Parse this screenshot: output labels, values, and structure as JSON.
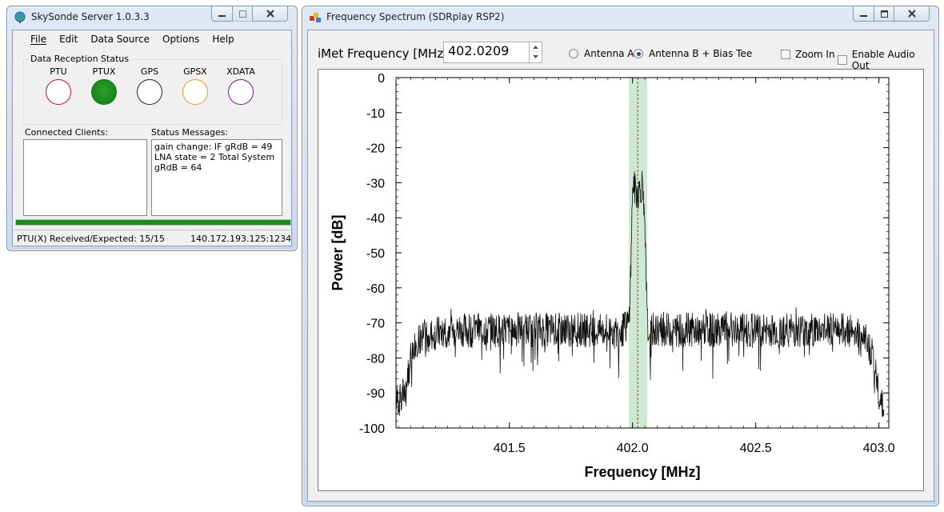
{
  "skysonde": {
    "title": "SkySonde Server 1.0.3.3",
    "menu": [
      "File",
      "Edit",
      "Data Source",
      "Options",
      "Help"
    ],
    "group_title": "Data Reception Status",
    "indicators": [
      {
        "label": "PTU",
        "color": "#c8102e",
        "filled": false
      },
      {
        "label": "PTUX",
        "color": "#0f7a0f",
        "filled": true
      },
      {
        "label": "GPS",
        "color": "#222222",
        "filled": false
      },
      {
        "label": "GPSX",
        "color": "#e0a020",
        "filled": false
      },
      {
        "label": "XDATA",
        "color": "#7a1c8a",
        "filled": false
      }
    ],
    "connected_clients_label": "Connected Clients:",
    "status_messages_label": "Status Messages:",
    "status_message": "gain change: IF gRdB = 49  LNA state = 2  Total System gRdB = 64",
    "progress": 1.0,
    "status_left": "PTU(X) Received/Expected: 15/15",
    "status_right": "140.172.193.125:1234"
  },
  "spectrum": {
    "title": "Frequency Spectrum (SDRplay RSP2)",
    "freq_label": "iMet Frequency [MHz]:",
    "freq_value": "402.0209",
    "antenna_a": "Antenna A",
    "antenna_b": "Antenna B + Bias Tee",
    "selected_antenna": "b",
    "zoom_in": "Zoom In",
    "audio_out": "Enable Audio Out"
  },
  "chart_data": {
    "type": "line",
    "xlabel": "Frequency [MHz]",
    "ylabel": "Power [dB]",
    "xlim": [
      401.04,
      403.04
    ],
    "ylim": [
      -100,
      0
    ],
    "xticks": [
      401.5,
      402.0,
      402.5,
      403.0
    ],
    "xtick_labels": [
      "401.5",
      "402.0",
      "402.5",
      "403.0"
    ],
    "yticks": [
      0,
      -10,
      -20,
      -30,
      -40,
      -50,
      -60,
      -70,
      -80,
      -90,
      -100
    ],
    "center_frequency": 402.0209,
    "highlight_band": [
      401.985,
      402.06
    ],
    "band_color": "#cfe8cf",
    "series": [
      {
        "x": [
          401.04,
          401.06,
          401.08,
          401.1,
          401.12,
          401.15,
          401.2,
          401.3,
          401.4,
          401.5,
          401.6,
          401.7,
          401.8,
          401.9,
          401.95,
          401.985,
          401.995,
          402.0,
          402.01,
          402.02,
          402.03,
          402.04,
          402.05,
          402.06,
          402.07,
          402.1,
          402.2,
          402.3,
          402.4,
          402.5,
          402.6,
          402.7,
          402.8,
          402.9,
          402.94,
          402.97,
          403.0,
          403.02
        ],
        "y": [
          -92,
          -92,
          -88,
          -80,
          -75,
          -74,
          -73,
          -72,
          -72,
          -72,
          -72,
          -72,
          -72,
          -72.5,
          -73,
          -70,
          -50,
          -30,
          -32,
          -33,
          -32,
          -30,
          -45,
          -70,
          -72,
          -72,
          -72,
          -72,
          -72,
          -72,
          -72,
          -72,
          -72,
          -72,
          -74,
          -78,
          -90,
          -93
        ],
        "noise_db": 5
      }
    ]
  }
}
